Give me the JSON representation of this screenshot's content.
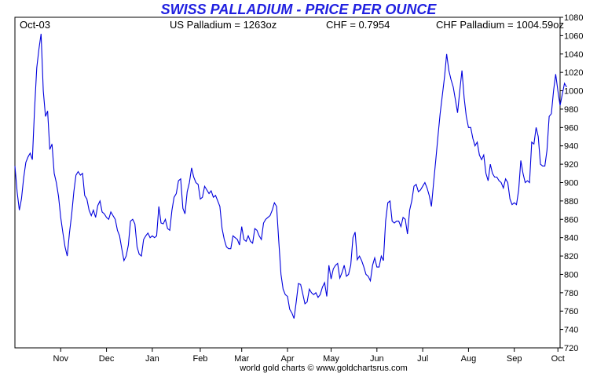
{
  "chart_data": {
    "type": "line",
    "title": "SWISS PALLADIUM - PRICE PER OUNCE",
    "header": {
      "start_label": "Oct-03",
      "us_price": "US Palladium = 1263oz",
      "fx": "CHF = 0.7954",
      "chf_price": "CHF Palladium = 1004.59oz"
    },
    "footer": "world gold charts © www.goldchartsrus.com",
    "xlabel": "",
    "ylabel": "",
    "ylim": [
      720,
      1080
    ],
    "y_ticks": [
      720,
      740,
      760,
      780,
      800,
      820,
      840,
      860,
      880,
      900,
      920,
      940,
      960,
      980,
      1000,
      1020,
      1040,
      1060,
      1080
    ],
    "x_range": [
      0,
      250
    ],
    "x_ticks": [
      {
        "label": "Nov",
        "x": 21
      },
      {
        "label": "Dec",
        "x": 42
      },
      {
        "label": "Jan",
        "x": 63
      },
      {
        "label": "Feb",
        "x": 85
      },
      {
        "label": "Mar",
        "x": 104
      },
      {
        "label": "Apr",
        "x": 125
      },
      {
        "label": "May",
        "x": 145
      },
      {
        "label": "Jun",
        "x": 166
      },
      {
        "label": "Jul",
        "x": 187
      },
      {
        "label": "Aug",
        "x": 208
      },
      {
        "label": "Sep",
        "x": 229
      },
      {
        "label": "Oct",
        "x": 249
      }
    ],
    "series": [
      {
        "color": "#0000dd",
        "values": [
          918,
          890,
          870,
          882,
          905,
          922,
          928,
          932,
          925,
          980,
          1025,
          1045,
          1062,
          1000,
          972,
          978,
          936,
          942,
          910,
          900,
          885,
          862,
          845,
          830,
          820,
          845,
          865,
          890,
          908,
          912,
          908,
          910,
          886,
          882,
          870,
          864,
          870,
          862,
          875,
          880,
          868,
          866,
          862,
          860,
          868,
          864,
          860,
          848,
          842,
          828,
          815,
          820,
          832,
          858,
          860,
          855,
          830,
          822,
          820,
          838,
          842,
          845,
          840,
          842,
          840,
          842,
          874,
          856,
          855,
          860,
          850,
          848,
          870,
          884,
          888,
          902,
          904,
          872,
          866,
          890,
          900,
          916,
          906,
          900,
          898,
          882,
          884,
          896,
          892,
          888,
          891,
          884,
          886,
          880,
          874,
          850,
          838,
          830,
          828,
          828,
          842,
          840,
          838,
          832,
          852,
          838,
          836,
          842,
          836,
          834,
          850,
          848,
          842,
          838,
          856,
          860,
          862,
          864,
          870,
          878,
          874,
          836,
          800,
          784,
          778,
          776,
          762,
          758,
          752,
          770,
          790,
          789,
          779,
          768,
          770,
          784,
          780,
          778,
          780,
          775,
          778,
          786,
          791,
          776,
          810,
          795,
          806,
          810,
          812,
          796,
          802,
          810,
          798,
          800,
          810,
          840,
          846,
          816,
          820,
          815,
          808,
          800,
          798,
          793,
          810,
          818,
          808,
          808,
          820,
          815,
          858,
          878,
          880,
          858,
          856,
          858,
          858,
          852,
          862,
          860,
          844,
          870,
          880,
          896,
          898,
          890,
          892,
          896,
          900,
          894,
          886,
          874,
          900,
          925,
          950,
          975,
          995,
          1015,
          1040,
          1022,
          1012,
          1004,
          990,
          976,
          1000,
          1022,
          992,
          972,
          960,
          960,
          948,
          940,
          944,
          930,
          925,
          930,
          910,
          902,
          920,
          910,
          906,
          906,
          902,
          900,
          894,
          904,
          900,
          882,
          876,
          878,
          876,
          892,
          924,
          910,
          900,
          902,
          900,
          944,
          942,
          960,
          950,
          920,
          918,
          918,
          935,
          972,
          975,
          1000,
          1018,
          1000,
          984,
          996,
          1008,
          1004
        ]
      }
    ],
    "grid": false,
    "legend": "none"
  }
}
